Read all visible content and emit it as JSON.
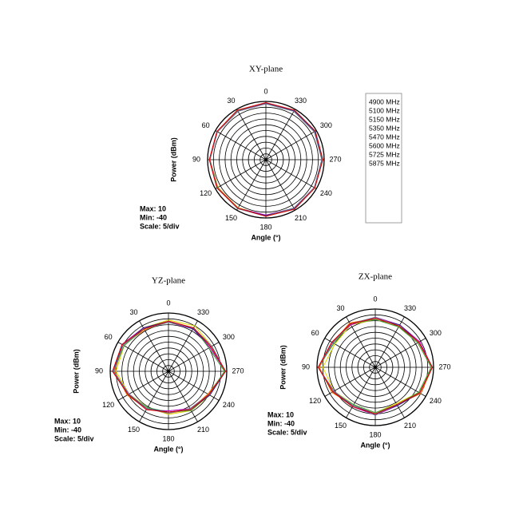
{
  "chart_data": [
    {
      "type": "polar",
      "title": "XY-plane",
      "xlabel": "Angle  (°)",
      "ylabel": "Power  (dBm)",
      "annotations": [
        "Max: 10",
        "Min: -40",
        "Scale: 5/div"
      ],
      "theta": [
        0,
        30,
        60,
        90,
        120,
        150,
        180,
        210,
        240,
        270,
        300,
        330
      ],
      "thetaticks": [
        0,
        30,
        60,
        90,
        120,
        150,
        180,
        210,
        240,
        270,
        300,
        330
      ],
      "rlim": [
        -40,
        10
      ],
      "rticks": [
        -40,
        -35,
        -30,
        -25,
        -20,
        -15,
        -10,
        -5,
        0,
        5,
        10
      ],
      "legend": "right",
      "series": [
        {
          "name": "4900 MHz",
          "color": "#e0d800",
          "values": [
            8,
            8.5,
            8,
            8.5,
            8,
            7.5,
            8,
            8.5,
            8,
            8.5,
            8,
            8.5
          ]
        },
        {
          "name": "5100 MHz",
          "color": "#30b8e0",
          "values": [
            8.5,
            8,
            8.5,
            8,
            8.5,
            8,
            8.5,
            8,
            8.5,
            8,
            8.5,
            8
          ]
        },
        {
          "name": "5150 MHz",
          "color": "#c000c0",
          "values": [
            8,
            8,
            8.5,
            8.5,
            8,
            8,
            7.5,
            8,
            8,
            8.5,
            8.5,
            8
          ]
        },
        {
          "name": "5350 MHz",
          "color": "#f07000",
          "values": [
            8.5,
            8.5,
            8,
            8,
            7.5,
            8,
            8.5,
            8.5,
            8,
            8,
            8,
            8.5
          ]
        },
        {
          "name": "5470 MHz",
          "color": "#40a040",
          "values": [
            8,
            8.5,
            8.5,
            8,
            8,
            8.5,
            8,
            8,
            8.5,
            8.5,
            8,
            8
          ]
        },
        {
          "name": "5600 MHz",
          "color": "#202090",
          "values": [
            8.5,
            8,
            8,
            8.5,
            8.5,
            8,
            8,
            8.5,
            8,
            8,
            8.5,
            8.5
          ]
        },
        {
          "name": "5725 MHz",
          "color": "#707090",
          "values": [
            8,
            8,
            8,
            8,
            8.5,
            8.5,
            8.5,
            8,
            8,
            8,
            8,
            8
          ]
        },
        {
          "name": "5875 MHz",
          "color": "#e00000",
          "values": [
            9,
            9,
            8.5,
            8.5,
            8.5,
            8,
            8.5,
            9,
            8.5,
            9,
            9,
            9
          ]
        }
      ]
    },
    {
      "type": "polar",
      "title": "YZ-plane",
      "xlabel": "Angle  (°)",
      "ylabel": "Power  (dBm)",
      "annotations": [
        "Max: 10",
        "Min: -40",
        "Scale: 5/div"
      ],
      "theta": [
        0,
        30,
        60,
        90,
        120,
        150,
        180,
        210,
        240,
        270,
        300,
        330
      ],
      "thetaticks": [
        0,
        30,
        60,
        90,
        120,
        150,
        180,
        210,
        240,
        270,
        300,
        330
      ],
      "rlim": [
        -40,
        10
      ],
      "rticks": [
        -40,
        -35,
        -30,
        -25,
        -20,
        -15,
        -10,
        -5,
        0,
        5,
        10
      ],
      "series": [
        {
          "color": "#e0d800",
          "values": [
            4,
            3,
            4,
            5,
            -1,
            -4,
            -3,
            -1,
            1,
            8,
            3,
            5
          ]
        },
        {
          "color": "#30b8e0",
          "values": [
            3,
            2,
            5,
            7,
            0,
            -3,
            -5,
            -2,
            0,
            9,
            2,
            3
          ]
        },
        {
          "color": "#c000c0",
          "values": [
            2,
            3,
            6,
            7,
            -1,
            -2,
            -6,
            -3,
            0,
            9,
            1,
            2
          ]
        },
        {
          "color": "#f07000",
          "values": [
            3,
            1,
            5,
            6,
            1,
            -3,
            -4,
            -2,
            -1,
            9,
            2,
            3
          ]
        },
        {
          "color": "#40a040",
          "values": [
            2,
            2,
            4,
            7,
            0,
            -4,
            -5,
            -1,
            0,
            8,
            0,
            3
          ]
        },
        {
          "color": "#202090",
          "values": [
            3,
            3,
            5,
            8,
            0,
            -3,
            -5,
            -2,
            1,
            9,
            2,
            2
          ]
        },
        {
          "color": "#707090",
          "values": [
            2,
            2,
            5,
            7,
            -1,
            -3,
            -4,
            -3,
            0,
            9,
            3,
            3
          ]
        },
        {
          "color": "#e00000",
          "values": [
            3,
            2,
            6,
            8,
            0,
            -2,
            -5,
            -2,
            0,
            9,
            2,
            3
          ]
        }
      ]
    },
    {
      "type": "polar",
      "title": "ZX-plane",
      "xlabel": "Angle  (°)",
      "ylabel": "Power  (dBm)",
      "annotations": [
        "Max: 10",
        "Min: -40",
        "Scale: 5/div"
      ],
      "theta": [
        0,
        30,
        60,
        90,
        120,
        150,
        180,
        210,
        240,
        270,
        300,
        330
      ],
      "thetaticks": [
        0,
        30,
        60,
        90,
        120,
        150,
        180,
        210,
        240,
        270,
        300,
        330
      ],
      "rlim": [
        -40,
        10
      ],
      "rticks": [
        -40,
        -35,
        -30,
        -25,
        -20,
        -15,
        -10,
        -5,
        0,
        5,
        10
      ],
      "series": [
        {
          "color": "#e0d800",
          "values": [
            1,
            2,
            0,
            5,
            1,
            -3,
            -1,
            -4,
            3,
            8,
            2,
            0
          ]
        },
        {
          "color": "#30b8e0",
          "values": [
            2,
            3,
            2,
            9,
            2,
            -2,
            0,
            -3,
            4,
            9,
            3,
            1
          ]
        },
        {
          "color": "#c000c0",
          "values": [
            3,
            2,
            3,
            9,
            1,
            -1,
            1,
            -2,
            4,
            9,
            4,
            2
          ]
        },
        {
          "color": "#f07000",
          "values": [
            2,
            4,
            2,
            8,
            3,
            -2,
            0,
            -3,
            5,
            9,
            3,
            1
          ]
        },
        {
          "color": "#40a040",
          "values": [
            1,
            3,
            1,
            9,
            2,
            -3,
            -1,
            -3,
            3,
            8,
            2,
            0
          ]
        },
        {
          "color": "#202090",
          "values": [
            2,
            3,
            2,
            9,
            2,
            -2,
            0,
            -2,
            4,
            9,
            3,
            2
          ]
        },
        {
          "color": "#707090",
          "values": [
            3,
            3,
            2,
            9,
            1,
            -2,
            1,
            -3,
            4,
            9,
            3,
            1
          ]
        },
        {
          "color": "#e00000",
          "values": [
            2,
            3,
            3,
            9,
            2,
            -1,
            0,
            -3,
            4,
            9,
            3,
            1
          ]
        }
      ]
    }
  ]
}
